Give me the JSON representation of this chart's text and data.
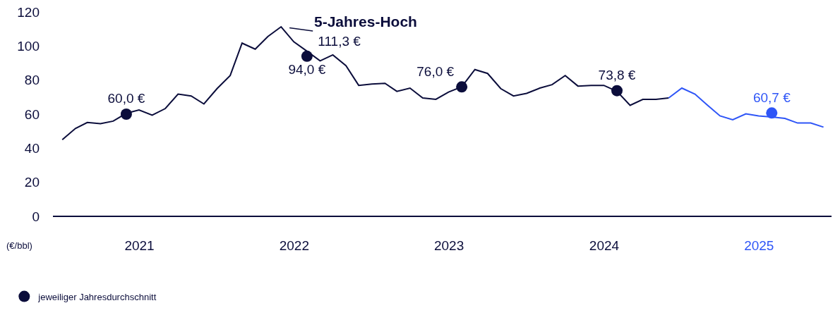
{
  "chart_data": {
    "type": "line",
    "ylabel": "(€/bbl)",
    "ylim": [
      0,
      120
    ],
    "yticks": [
      0,
      20,
      40,
      60,
      80,
      100,
      120
    ],
    "xlim": [
      "2020-12-10",
      "2025-12-20"
    ],
    "xticks": [
      {
        "value": "2021-07-02",
        "label": "2021"
      },
      {
        "value": "2022-07-02",
        "label": "2022"
      },
      {
        "value": "2023-07-02",
        "label": "2023"
      },
      {
        "value": "2024-07-02",
        "label": "2024"
      },
      {
        "value": "2025-07-02",
        "label": "2025"
      }
    ],
    "grid": false,
    "legend": "bottom left",
    "line_style": "solid",
    "marker": "none",
    "series": [
      {
        "color": "#0b0d3b",
        "x": [
          "2021-01",
          "2021-02",
          "2021-03",
          "2021-04",
          "2021-05",
          "2021-06",
          "2021-07",
          "2021-08",
          "2021-09",
          "2021-10",
          "2021-11",
          "2021-12",
          "2022-01",
          "2022-02",
          "2022-03",
          "2022-04",
          "2022-05",
          "2022-06",
          "2022-07",
          "2022-08",
          "2022-09",
          "2022-10",
          "2022-11",
          "2022-12",
          "2023-01",
          "2023-02",
          "2023-03",
          "2023-04",
          "2023-05",
          "2023-06",
          "2023-07",
          "2023-08",
          "2023-09",
          "2023-10",
          "2023-11",
          "2023-12",
          "2024-01",
          "2024-02",
          "2024-03",
          "2024-04",
          "2024-05",
          "2024-06",
          "2024-07",
          "2024-08",
          "2024-09",
          "2024-10",
          "2024-11",
          "2024-12"
        ],
        "values": [
          45.0,
          51.6,
          55.1,
          54.4,
          55.9,
          60.5,
          62.5,
          59.4,
          63.3,
          71.8,
          70.7,
          66.0,
          75.0,
          82.7,
          101.7,
          98.2,
          105.6,
          111.3,
          102.5,
          97.0,
          91.3,
          94.8,
          88.5,
          76.9,
          77.7,
          78.1,
          73.4,
          75.3,
          69.5,
          68.7,
          73.0,
          76.1,
          86.2,
          83.9,
          75.0,
          70.7,
          72.2,
          75.3,
          77.3,
          82.7,
          76.5,
          76.9,
          76.9,
          73.4,
          65.2,
          68.7,
          68.7,
          69.5
        ]
      },
      {
        "color": "#2e55f7",
        "x": [
          "2024-12",
          "2025-01",
          "2025-02",
          "2025-03",
          "2025-04",
          "2025-05",
          "2025-06",
          "2025-07",
          "2025-08",
          "2025-09",
          "2025-10",
          "2025-11",
          "2025-12"
        ],
        "values": [
          69.5,
          75.3,
          71.8,
          65.6,
          59.0,
          56.7,
          60.2,
          59.0,
          58.3,
          57.5,
          54.8,
          54.8,
          52.4
        ]
      },
      {
        "type": "scatter",
        "name": "jeweiliger Jahresdurchschnitt",
        "marker": "circle",
        "x": [
          "2021-06",
          "2022-08",
          "2023-08",
          "2024-08",
          "2025-08"
        ],
        "values": [
          60.0,
          94.0,
          76.0,
          73.8,
          60.7
        ],
        "value_labels": [
          "60,0 €",
          "94,0 €",
          "76,0 €",
          "73,8 €",
          "60,7 €"
        ],
        "colors": [
          "#0b0d3b",
          "#0b0d3b",
          "#0b0d3b",
          "#0b0d3b",
          "#2e55f7"
        ]
      }
    ],
    "annotations": [
      {
        "text": "5-Jahres-Hoch\n111,3 €",
        "x": "2022-06",
        "y": 111.3
      }
    ]
  }
}
